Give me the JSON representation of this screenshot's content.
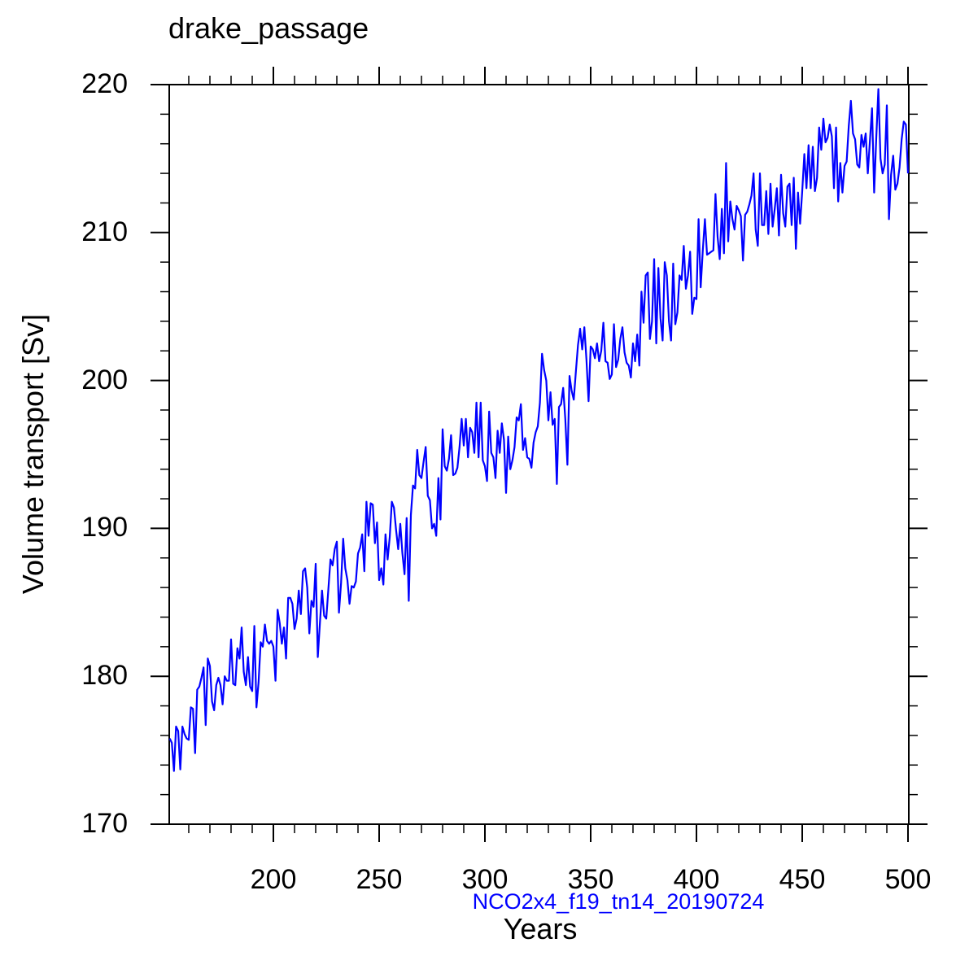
{
  "chart_data": {
    "type": "line",
    "title": "drake_passage",
    "xlabel": "Years",
    "ylabel": "Volume transport [Sv]",
    "caption": "NCO2x4_f19_tn14_20190724",
    "xlim": [
      151,
      500
    ],
    "ylim": [
      170,
      220
    ],
    "xticks": [
      200,
      250,
      300,
      350,
      400,
      450,
      500
    ],
    "yticks": [
      170,
      180,
      190,
      200,
      210,
      220
    ],
    "grid": false,
    "line_color": "#0000ff",
    "x_start": 151,
    "series": [
      {
        "name": "drake_passage",
        "values": [
          175.8,
          175.5,
          173.6,
          176.6,
          176.3,
          173.7,
          176.6,
          176.1,
          175.8,
          175.7,
          177.9,
          177.8,
          174.8,
          179.1,
          179.3,
          179.9,
          180.6,
          176.7,
          181.2,
          180.7,
          178.3,
          177.7,
          179.4,
          179.9,
          179.4,
          178.1,
          180.0,
          179.7,
          179.7,
          182.5,
          179.5,
          179.4,
          181.9,
          181.2,
          183.3,
          180.3,
          179.4,
          181.3,
          179.3,
          179.0,
          183.4,
          177.9,
          179.6,
          182.3,
          182.0,
          183.5,
          182.4,
          182.2,
          182.4,
          182.0,
          179.7,
          184.5,
          183.6,
          182.2,
          183.3,
          181.2,
          185.3,
          185.3,
          184.9,
          183.2,
          183.9,
          185.8,
          184.2,
          187.1,
          187.3,
          186.0,
          182.9,
          185.1,
          184.7,
          187.6,
          181.3,
          183.6,
          185.8,
          184.1,
          183.9,
          185.9,
          187.9,
          187.5,
          188.6,
          189.1,
          184.3,
          186.3,
          189.3,
          187.3,
          186.5,
          184.9,
          186.1,
          186.0,
          186.4,
          188.3,
          188.7,
          189.6,
          187.1,
          191.8,
          189.5,
          191.7,
          191.6,
          189.0,
          190.4,
          186.5,
          187.3,
          186.2,
          189.6,
          187.9,
          189.4,
          191.8,
          191.4,
          189.9,
          188.6,
          190.3,
          188.3,
          186.9,
          190.7,
          185.1,
          190.9,
          192.9,
          192.7,
          195.3,
          193.6,
          193.4,
          194.5,
          195.5,
          192.2,
          191.9,
          190.0,
          190.3,
          189.5,
          193.4,
          190.6,
          196.7,
          194.2,
          193.9,
          194.7,
          196.3,
          193.6,
          193.7,
          194.1,
          195.5,
          197.4,
          195.6,
          197.4,
          194.8,
          196.8,
          196.5,
          195.1,
          198.5,
          194.8,
          198.5,
          194.6,
          194.2,
          193.2,
          197.9,
          195.1,
          194.8,
          193.4,
          196.6,
          195.1,
          197.1,
          196.0,
          192.4,
          196.2,
          194.0,
          194.6,
          195.5,
          197.5,
          197.3,
          198.4,
          195.3,
          196.1,
          194.8,
          194.7,
          194.1,
          195.8,
          196.5,
          196.9,
          198.5,
          201.8,
          200.7,
          200.0,
          197.3,
          199.2,
          197.0,
          197.4,
          193.0,
          198.2,
          198.4,
          199.5,
          197.4,
          194.3,
          200.3,
          199.3,
          198.7,
          200.6,
          202.4,
          203.5,
          202.1,
          203.6,
          201.4,
          198.6,
          202.3,
          202.1,
          201.5,
          202.5,
          201.3,
          202.0,
          203.9,
          201.3,
          201.2,
          200.1,
          200.4,
          203.8,
          200.9,
          201.4,
          202.8,
          203.6,
          201.9,
          201.2,
          201.0,
          200.2,
          202.5,
          201.3,
          203.1,
          201.0,
          206.0,
          203.9,
          207.1,
          207.3,
          202.8,
          204.0,
          208.2,
          202.5,
          207.6,
          204.2,
          202.7,
          208.0,
          207.1,
          204.0,
          202.7,
          207.9,
          203.8,
          204.6,
          207.1,
          206.8,
          209.1,
          206.2,
          207.1,
          208.7,
          204.5,
          205.6,
          205.5,
          210.9,
          206.3,
          208.8,
          210.9,
          208.5,
          208.6,
          208.7,
          208.8,
          212.6,
          209.7,
          208.2,
          211.6,
          208.6,
          214.7,
          209.4,
          212.1,
          210.9,
          210.2,
          211.8,
          211.5,
          211.1,
          208.1,
          211.2,
          211.4,
          211.9,
          212.5,
          214.0,
          210.2,
          209.1,
          214.0,
          210.5,
          210.5,
          212.8,
          209.9,
          213.3,
          210.4,
          211.6,
          213.0,
          209.8,
          213.9,
          211.3,
          210.4,
          213.1,
          213.3,
          210.5,
          213.7,
          208.9,
          212.7,
          210.6,
          212.8,
          215.3,
          213.0,
          215.9,
          213.0,
          215.8,
          212.8,
          213.7,
          217.1,
          215.6,
          217.7,
          216.1,
          216.4,
          217.3,
          216.5,
          213.0,
          217.1,
          212.1,
          214.7,
          212.7,
          214.5,
          214.8,
          217.2,
          218.9,
          216.7,
          216.3,
          214.6,
          214.4,
          216.6,
          215.8,
          216.7,
          214.0,
          216.2,
          218.4,
          212.7,
          216.4,
          219.7,
          215.0,
          214.0,
          214.6,
          218.6,
          210.9,
          213.9,
          215.2,
          212.9,
          213.3,
          214.4,
          216.3,
          217.5,
          217.3,
          214.0
        ]
      }
    ]
  }
}
